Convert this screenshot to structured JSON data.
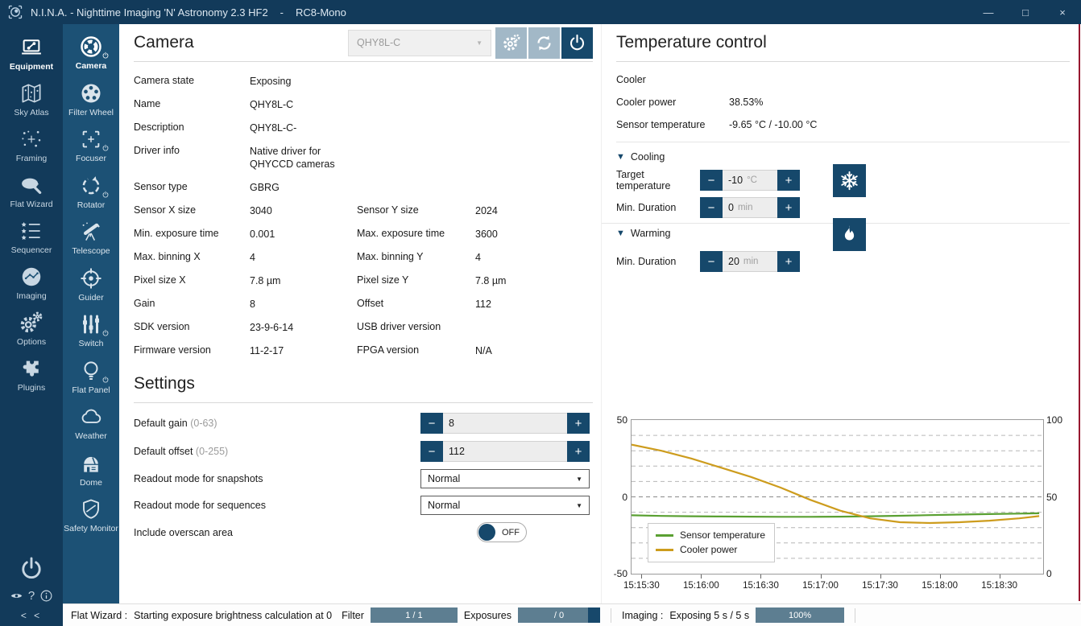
{
  "window": {
    "title": "N.I.N.A. - Nighttime Imaging 'N' Astronomy 2.3 HF2",
    "separator": "-",
    "profile": "RC8-Mono"
  },
  "icons": {
    "minimize": "—",
    "maximize": "□",
    "close": "×",
    "dropdown_arrow": "▼",
    "expander": "▼",
    "help": "?",
    "collapse": "< <",
    "minus": "−",
    "plus": "+"
  },
  "colors": {
    "titlebar": "#123a5a",
    "sidebar_secondary": "#1c5175",
    "accent_navy": "#16486b",
    "header_button_light": "#a2b8c7",
    "progress_fill": "#5d7e91",
    "progress_track": "#17486b",
    "scrollbar_red": "#97182f",
    "chart_green": "#5aa032",
    "chart_orange": "#cd9c1d"
  },
  "nav_primary": [
    {
      "label": "Equipment",
      "active": true
    },
    {
      "label": "Sky Atlas",
      "active": false
    },
    {
      "label": "Framing",
      "active": false
    },
    {
      "label": "Flat Wizard",
      "active": false
    },
    {
      "label": "Sequencer",
      "active": false
    },
    {
      "label": "Imaging",
      "active": false
    },
    {
      "label": "Options",
      "active": false
    },
    {
      "label": "Plugins",
      "active": false
    }
  ],
  "nav_secondary": [
    {
      "label": "Camera",
      "active": true
    },
    {
      "label": "Filter Wheel",
      "active": false
    },
    {
      "label": "Focuser",
      "active": false
    },
    {
      "label": "Rotator",
      "active": false
    },
    {
      "label": "Telescope",
      "active": false
    },
    {
      "label": "Guider",
      "active": false
    },
    {
      "label": "Switch",
      "active": false
    },
    {
      "label": "Flat Panel",
      "active": false
    },
    {
      "label": "Weather",
      "active": false
    },
    {
      "label": "Dome",
      "active": false
    },
    {
      "label": "Safety Monitor",
      "active": false
    }
  ],
  "camera": {
    "title": "Camera",
    "device": "QHY8L-C",
    "info": [
      {
        "l1": "Camera state",
        "v1": "Exposing",
        "l2": "",
        "v2": ""
      },
      {
        "l1": "Name",
        "v1": "QHY8L-C",
        "l2": "",
        "v2": ""
      },
      {
        "l1": "Description",
        "v1": "QHY8L-C-",
        "l2": "",
        "v2": ""
      },
      {
        "l1": "Driver info",
        "v1": "Native driver for\nQHYCCD cameras",
        "l2": "",
        "v2": ""
      },
      {
        "l1": "Sensor type",
        "v1": "GBRG",
        "l2": "",
        "v2": ""
      },
      {
        "l1": "Sensor X size",
        "v1": "3040",
        "l2": "Sensor Y size",
        "v2": "2024"
      },
      {
        "l1": "Min. exposure time",
        "v1": "0.001",
        "l2": "Max. exposure time",
        "v2": "3600"
      },
      {
        "l1": "Max. binning X",
        "v1": "4",
        "l2": "Max. binning Y",
        "v2": "4"
      },
      {
        "l1": "Pixel size X",
        "v1": "7.8 µm",
        "l2": "Pixel size Y",
        "v2": "7.8 µm"
      },
      {
        "l1": "Gain",
        "v1": "8",
        "l2": "Offset",
        "v2": "112"
      },
      {
        "l1": "SDK version",
        "v1": "23-9-6-14",
        "l2": "USB driver version",
        "v2": ""
      },
      {
        "l1": "Firmware version",
        "v1": "11-2-17",
        "l2": "FPGA version",
        "v2": "N/A"
      }
    ]
  },
  "settings": {
    "title": "Settings",
    "default_gain": {
      "label": "Default gain",
      "range": "(0-63)",
      "value": "8"
    },
    "default_offset": {
      "label": "Default offset",
      "range": "(0-255)",
      "value": "112"
    },
    "readout_snapshots": {
      "label": "Readout mode for snapshots",
      "value": "Normal"
    },
    "readout_sequences": {
      "label": "Readout mode for sequences",
      "value": "Normal"
    },
    "overscan": {
      "label": "Include overscan area",
      "state": "OFF"
    }
  },
  "temperature": {
    "title": "Temperature control",
    "cooler_label": "Cooler",
    "cooler_power": {
      "label": "Cooler power",
      "value": "38.53%"
    },
    "sensor_temp": {
      "label": "Sensor temperature",
      "value": "-9.65 °C /  -10.00 °C"
    },
    "cooling": {
      "header": "Cooling",
      "target": {
        "label": "Target temperature",
        "value": "-10",
        "unit": "°C"
      },
      "duration": {
        "label": "Min. Duration",
        "value": "0",
        "unit": "min"
      }
    },
    "warming": {
      "header": "Warming",
      "duration": {
        "label": "Min. Duration",
        "value": "20",
        "unit": "min"
      }
    }
  },
  "chart_data": {
    "type": "line",
    "x_type": "time",
    "x_range": [
      "15:15:25",
      "15:18:52"
    ],
    "x_ticks": [
      "15:15:30",
      "15:16:00",
      "15:16:30",
      "15:17:00",
      "15:17:30",
      "15:18:00",
      "15:18:30"
    ],
    "y_left": {
      "min": -50,
      "max": 50,
      "ticks": [
        "50",
        "0",
        "-50"
      ]
    },
    "y_right": {
      "min": 0,
      "max": 100,
      "ticks": [
        "100",
        "50",
        "0"
      ]
    },
    "grid_step": 10,
    "grid": true,
    "legend_position": "bottom-left",
    "series": [
      {
        "name": "Sensor temperature",
        "color": "#5aa032",
        "axis": "left",
        "x": [
          "15:15:25",
          "15:15:40",
          "15:15:55",
          "15:16:10",
          "15:16:25",
          "15:16:40",
          "15:16:55",
          "15:17:10",
          "15:17:25",
          "15:17:40",
          "15:17:55",
          "15:18:10",
          "15:18:25",
          "15:18:40",
          "15:18:50"
        ],
        "y": [
          -12.0,
          -12.4,
          -12.6,
          -12.8,
          -12.9,
          -13.0,
          -13.0,
          -12.9,
          -12.6,
          -12.3,
          -11.9,
          -11.5,
          -11.2,
          -10.9,
          -10.7
        ]
      },
      {
        "name": "Cooler power",
        "color": "#cd9c1d",
        "axis": "right",
        "x": [
          "15:15:25",
          "15:15:40",
          "15:15:55",
          "15:16:10",
          "15:16:25",
          "15:16:40",
          "15:16:55",
          "15:17:10",
          "15:17:25",
          "15:17:40",
          "15:17:55",
          "15:18:10",
          "15:18:25",
          "15:18:40",
          "15:18:50"
        ],
        "y": [
          84,
          80,
          75,
          69,
          63,
          56,
          48,
          41,
          36,
          33.5,
          33,
          33.5,
          34.5,
          36,
          37.5
        ]
      }
    ]
  },
  "status_bar": {
    "flat_wizard": {
      "label": "Flat Wizard :",
      "text": "Starting exposure brightness calculation at 0"
    },
    "filter": {
      "label": "Filter",
      "progress_text": "1 / 1",
      "fill": 1
    },
    "exposures": {
      "label": "Exposures",
      "progress_text": "/ 0",
      "fill": 0.85
    },
    "imaging": {
      "label": "Imaging :",
      "text": "Exposing 5 s / 5 s",
      "progress_text": "100%",
      "fill": 1
    }
  }
}
